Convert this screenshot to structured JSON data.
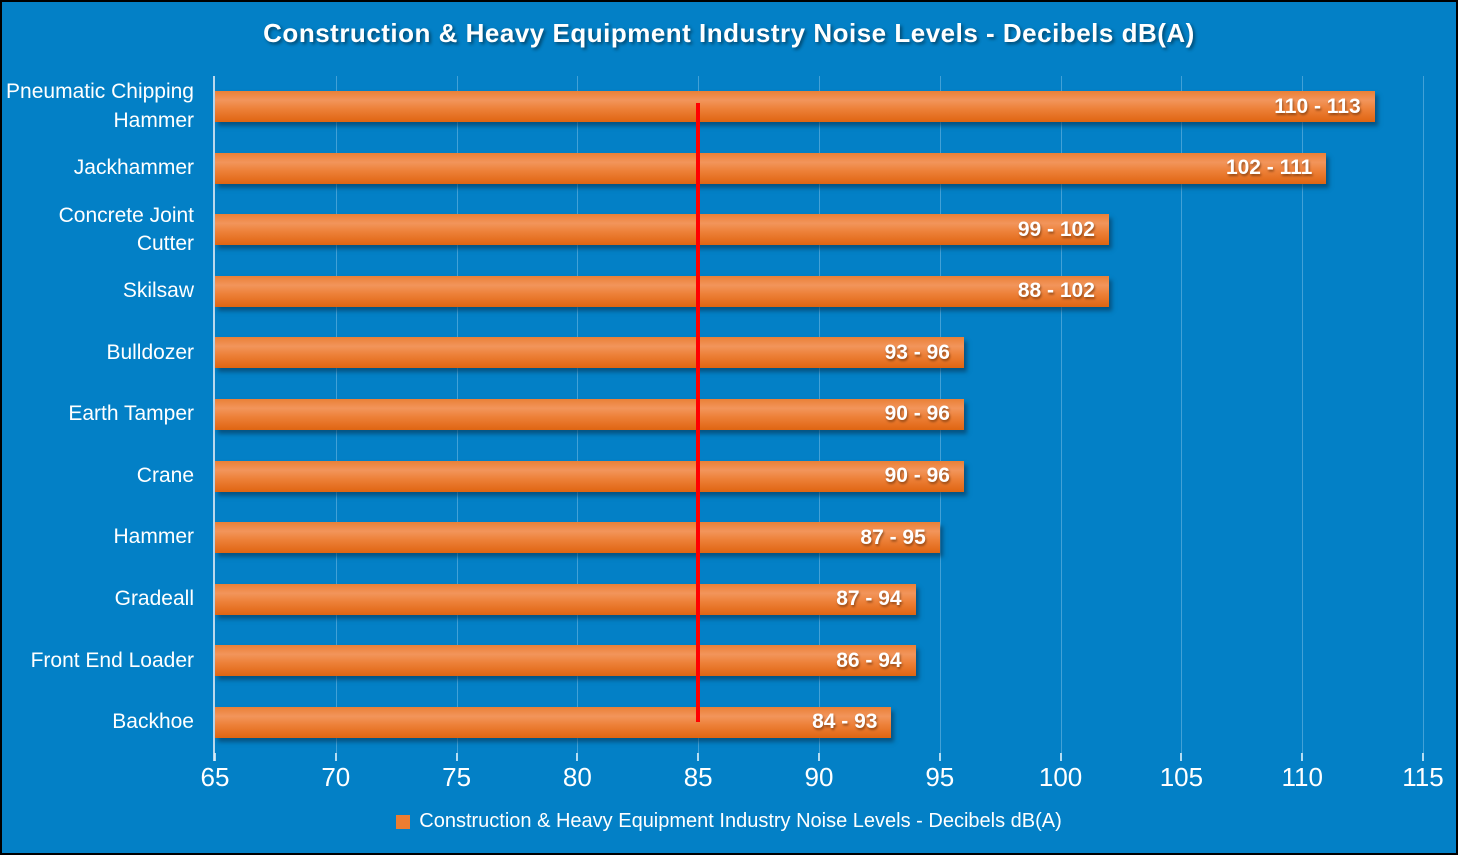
{
  "title": "Construction & Heavy Equipment Industry Noise Levels - Decibels dB(A)",
  "legend": {
    "marker_color": "#ED7D31",
    "label": "Construction & Heavy Equipment Industry Noise Levels - Decibels dB(A)"
  },
  "colors": {
    "background": "#0380C6",
    "bar": "#ED7D31",
    "threshold_line": "#FF0000",
    "text": "#FFFFFF"
  },
  "chart_data": {
    "type": "bar",
    "orientation": "horizontal",
    "title": "Construction & Heavy Equipment Industry Noise Levels - Decibels dB(A)",
    "categories": [
      "Pneumatic Chipping Hammer",
      "Jackhammer",
      "Concrete Joint Cutter",
      "Skilsaw",
      "Bulldozer",
      "Earth Tamper",
      "Crane",
      "Hammer",
      "Gradeall",
      "Front End Loader",
      "Backhoe"
    ],
    "series": [
      {
        "name": "Construction & Heavy Equipment Industry Noise Levels - Decibels dB(A)",
        "range_low": [
          110,
          102,
          99,
          88,
          93,
          90,
          90,
          87,
          87,
          86,
          84
        ],
        "range_high": [
          113,
          111,
          102,
          102,
          96,
          96,
          96,
          95,
          94,
          94,
          93
        ],
        "data_labels": [
          "110 - 113",
          "102 - 111",
          "99 - 102",
          "88 - 102",
          "93 - 96",
          "90 - 96",
          "90 - 96",
          "87 - 95",
          "87 - 94",
          "86 - 94",
          "84 - 93"
        ]
      }
    ],
    "bar_base_value": 65,
    "xlabel": "",
    "ylabel": "",
    "x_axis": {
      "min": 65,
      "max": 115,
      "step": 5,
      "tick_labels": [
        "65",
        "70",
        "75",
        "80",
        "85",
        "90",
        "95",
        "100",
        "105",
        "110",
        "115"
      ]
    },
    "threshold_line": {
      "value": 85,
      "color": "#FF0000"
    },
    "grid": "vertical",
    "legend_position": "bottom"
  }
}
